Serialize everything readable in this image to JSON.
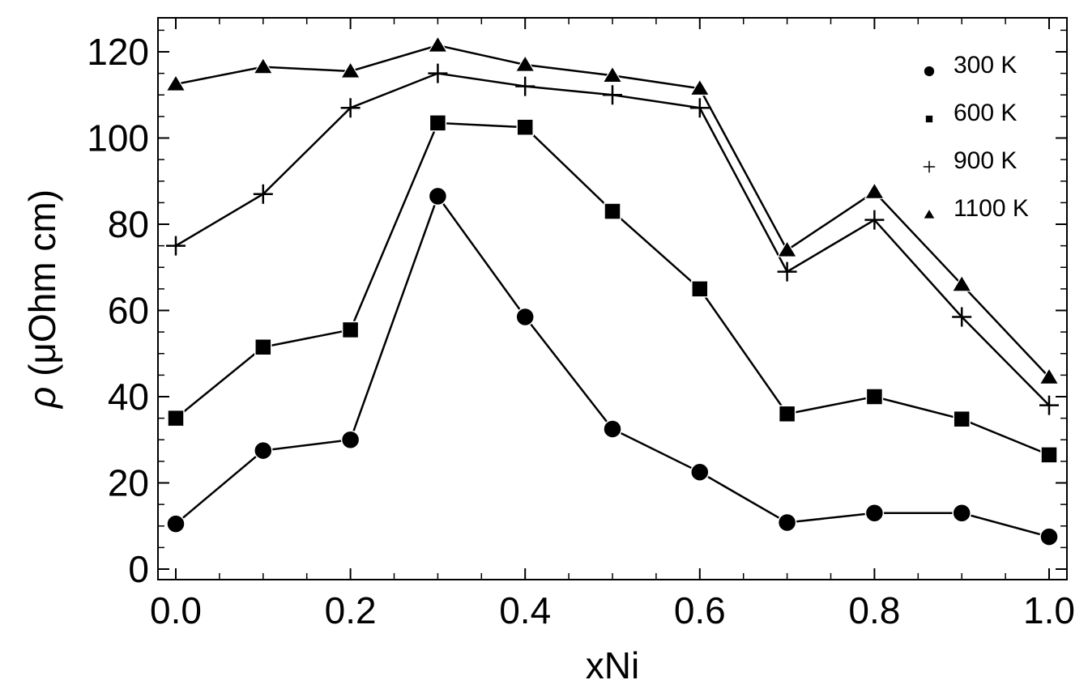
{
  "chart_data": {
    "type": "line",
    "xlabel": "xNi",
    "ylabel_symbol": "ρ",
    "ylabel_unit": " (μOhm cm)",
    "xlim": [
      0.0,
      1.0
    ],
    "ylim": [
      -2,
      128
    ],
    "x_ticks": [
      0.0,
      0.2,
      0.4,
      0.6,
      0.8,
      1.0
    ],
    "x_tick_labels": [
      "0.0",
      "0.2",
      "0.4",
      "0.6",
      "0.8",
      "1.0"
    ],
    "x_minor_ticks": [
      0.05,
      0.1,
      0.15,
      0.25,
      0.3,
      0.35,
      0.45,
      0.5,
      0.55,
      0.65,
      0.7,
      0.75,
      0.85,
      0.9,
      0.95
    ],
    "y_ticks": [
      0,
      20,
      40,
      60,
      80,
      100,
      120
    ],
    "y_tick_labels": [
      "0",
      "20",
      "40",
      "60",
      "80",
      "100",
      "120"
    ],
    "y_minor_ticks": [
      5,
      10,
      15,
      25,
      30,
      35,
      45,
      50,
      55,
      65,
      70,
      75,
      85,
      90,
      95,
      105,
      110,
      115,
      125
    ],
    "grid": false,
    "legend_position": "top-right",
    "x": [
      0.0,
      0.1,
      0.2,
      0.3,
      0.4,
      0.5,
      0.6,
      0.7,
      0.8,
      0.9,
      1.0
    ],
    "series": [
      {
        "name": "300 K",
        "marker": "circle",
        "values": [
          10.5,
          27.5,
          30,
          86.5,
          58.5,
          32.5,
          22.5,
          10.8,
          13,
          13,
          7.5
        ]
      },
      {
        "name": "600 K",
        "marker": "square",
        "values": [
          35,
          51.5,
          55.5,
          103.5,
          102.5,
          83,
          65,
          36,
          40,
          34.8,
          26.5
        ]
      },
      {
        "name": "900 K",
        "marker": "plus",
        "values": [
          75,
          87,
          107,
          115,
          112,
          110,
          107,
          69,
          81,
          58.5,
          38
        ]
      },
      {
        "name": "1100 K",
        "marker": "triangle",
        "values": [
          112.5,
          116.5,
          115.5,
          121.5,
          117,
          114.5,
          111.5,
          74,
          87.5,
          66,
          44.5
        ]
      }
    ]
  }
}
